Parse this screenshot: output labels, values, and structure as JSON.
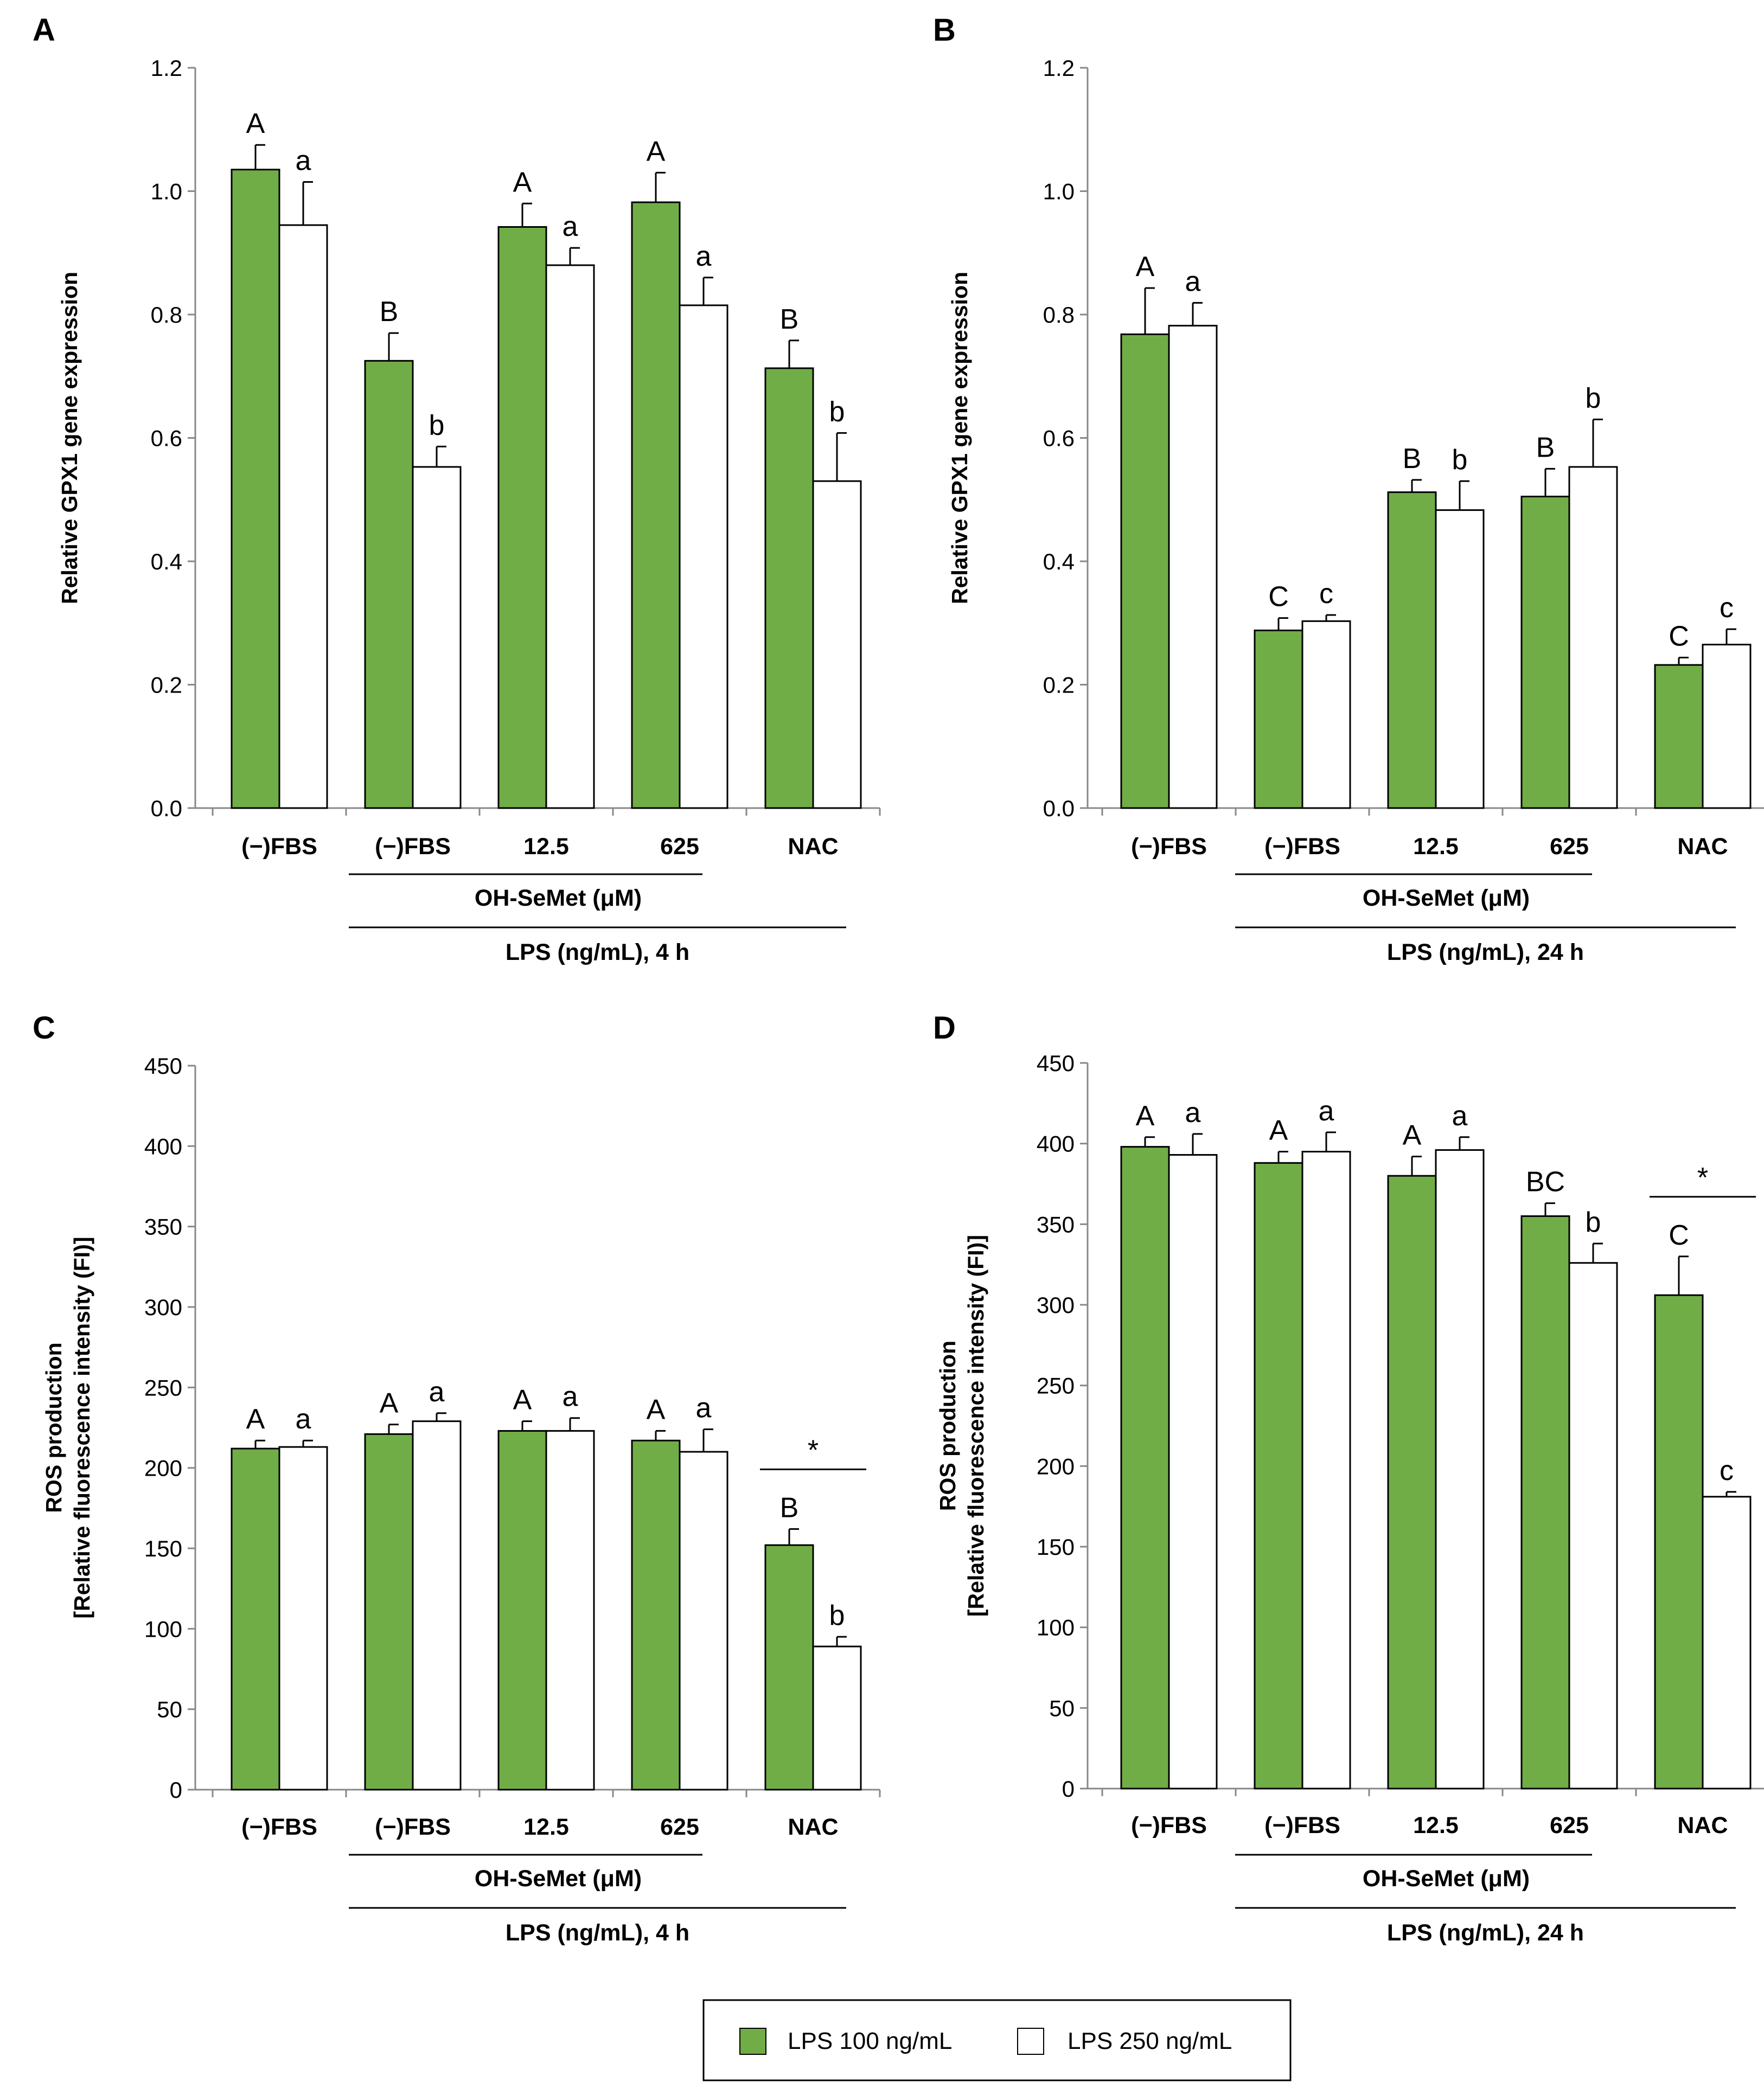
{
  "legend": {
    "series": [
      {
        "name": "LPS 100 ng/mL",
        "color": "#70AD47"
      },
      {
        "name": "LPS 250 ng/mL",
        "color": "#FFFFFF"
      }
    ]
  },
  "chart_data": [
    {
      "panel": "A",
      "type": "bar",
      "ylabel": "Relative GPX1 gene expression",
      "ylim": [
        0,
        1.2
      ],
      "yticks": [
        "0.0",
        "0.2",
        "0.4",
        "0.6",
        "0.8",
        "1.0",
        "1.2"
      ],
      "categories": [
        "(−)FBS",
        "(−)FBS",
        "12.5",
        "625",
        "NAC"
      ],
      "series": [
        {
          "name": "LPS 100 ng/mL",
          "values": [
            1.035,
            0.725,
            0.942,
            0.982,
            0.713
          ],
          "errors": [
            0.04,
            0.045,
            0.038,
            0.048,
            0.045
          ],
          "letters": [
            "A",
            "B",
            "A",
            "A",
            "B"
          ]
        },
        {
          "name": "LPS 250 ng/mL",
          "values": [
            0.945,
            0.553,
            0.88,
            0.815,
            0.53
          ],
          "errors": [
            0.07,
            0.033,
            0.028,
            0.045,
            0.078
          ],
          "letters": [
            "a",
            "b",
            "a",
            "a",
            "b"
          ]
        }
      ],
      "group_label_1": "OH-SeMet (μM)",
      "group_label_2": "LPS (ng/mL), 4 h",
      "sig_mark": null
    },
    {
      "panel": "B",
      "type": "bar",
      "ylabel": "Relative GPX1 gene expression",
      "ylim": [
        0,
        1.2
      ],
      "yticks": [
        "0.0",
        "0.2",
        "0.4",
        "0.6",
        "0.8",
        "1.0",
        "1.2"
      ],
      "categories": [
        "(−)FBS",
        "(−)FBS",
        "12.5",
        "625",
        "NAC"
      ],
      "series": [
        {
          "name": "LPS 100 ng/mL",
          "values": [
            0.768,
            0.288,
            0.512,
            0.505,
            0.232
          ],
          "errors": [
            0.075,
            0.02,
            0.02,
            0.045,
            0.012
          ],
          "letters": [
            "A",
            "C",
            "B",
            "B",
            "C"
          ]
        },
        {
          "name": "LPS 250 ng/mL",
          "values": [
            0.782,
            0.303,
            0.483,
            0.553,
            0.265
          ],
          "errors": [
            0.037,
            0.01,
            0.047,
            0.077,
            0.025
          ],
          "letters": [
            "a",
            "c",
            "b",
            "b",
            "c"
          ]
        }
      ],
      "group_label_1": "OH-SeMet (μM)",
      "group_label_2": "LPS (ng/mL), 24 h",
      "sig_mark": null
    },
    {
      "panel": "C",
      "type": "bar",
      "ylabel": "ROS production",
      "ylabel2": "[Relative fluorescence intensity (FI)]",
      "ylim": [
        0,
        450
      ],
      "yticks": [
        "0",
        "50",
        "100",
        "150",
        "200",
        "250",
        "300",
        "350",
        "400",
        "450"
      ],
      "categories": [
        "(−)FBS",
        "(−)FBS",
        "12.5",
        "625",
        "NAC"
      ],
      "series": [
        {
          "name": "LPS 100 ng/mL",
          "values": [
            212,
            221,
            223,
            217,
            152
          ],
          "errors": [
            5,
            6,
            6,
            6,
            10
          ],
          "letters": [
            "A",
            "A",
            "A",
            "A",
            "B"
          ]
        },
        {
          "name": "LPS 250 ng/mL",
          "values": [
            213,
            229,
            223,
            210,
            89
          ],
          "errors": [
            4,
            5,
            8,
            14,
            6
          ],
          "letters": [
            "a",
            "a",
            "a",
            "a",
            "b"
          ]
        }
      ],
      "group_label_1": "OH-SeMet (μM)",
      "group_label_2": "LPS (ng/mL), 4 h",
      "sig_mark": "*"
    },
    {
      "panel": "D",
      "type": "bar",
      "ylabel": "ROS production",
      "ylabel2": "[Relative fluorescence intensity (FI)]",
      "ylim": [
        0,
        450
      ],
      "yticks": [
        "0",
        "50",
        "100",
        "150",
        "200",
        "250",
        "300",
        "350",
        "400",
        "450"
      ],
      "categories": [
        "(−)FBS",
        "(−)FBS",
        "12.5",
        "625",
        "NAC"
      ],
      "series": [
        {
          "name": "LPS 100 ng/mL",
          "values": [
            398,
            388,
            380,
            355,
            306
          ],
          "errors": [
            6,
            7,
            12,
            8,
            24
          ],
          "letters": [
            "A",
            "A",
            "A",
            "BC",
            "C"
          ]
        },
        {
          "name": "LPS 250 ng/mL",
          "values": [
            393,
            395,
            396,
            326,
            181
          ],
          "errors": [
            13,
            12,
            8,
            12,
            3
          ],
          "letters": [
            "a",
            "a",
            "a",
            "b",
            "c"
          ]
        }
      ],
      "group_label_1": "OH-SeMet (μM)",
      "group_label_2": "LPS (ng/mL), 24 h",
      "sig_mark": "*"
    }
  ]
}
